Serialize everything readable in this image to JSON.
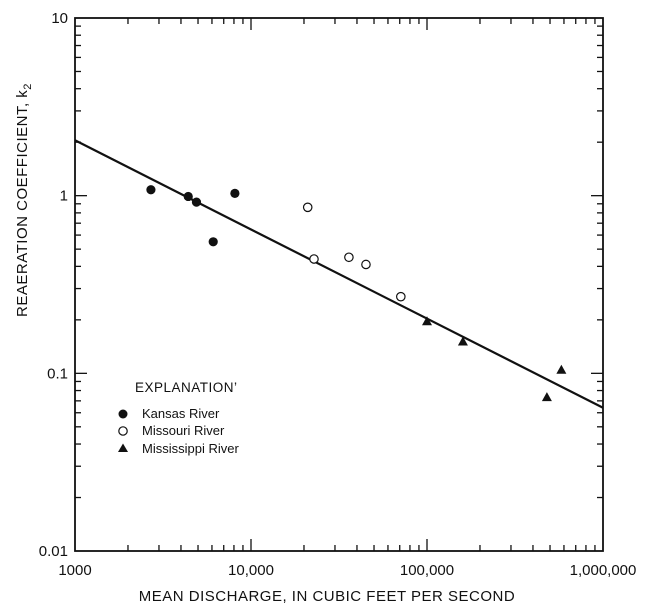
{
  "chart_data": {
    "type": "scatter",
    "title": "",
    "xlabel": "MEAN DISCHARGE, IN CUBIC FEET PER SECOND",
    "ylabel": "REAERATION COEFFICIENT, k",
    "ylabel_subscript": "2",
    "xscale": "log",
    "yscale": "log",
    "xlim": [
      1000,
      1000000
    ],
    "ylim": [
      0.01,
      10
    ],
    "grid": false,
    "x_ticks": [
      {
        "value": 1000,
        "label": "1000"
      },
      {
        "value": 10000,
        "label": "10,000"
      },
      {
        "value": 100000,
        "label": "100,000"
      },
      {
        "value": 1000000,
        "label": "1,000,000"
      }
    ],
    "y_ticks": [
      {
        "value": 0.01,
        "label": "0.01"
      },
      {
        "value": 0.1,
        "label": "0.1"
      },
      {
        "value": 1,
        "label": "1"
      },
      {
        "value": 10,
        "label": "10"
      }
    ],
    "legend": {
      "title": "EXPLANATION’",
      "placement": "lower-left",
      "entries": [
        {
          "label": "Kansas River",
          "marker": "filled-circle"
        },
        {
          "label": "Missouri River",
          "marker": "open-circle"
        },
        {
          "label": "Mississippi River",
          "marker": "filled-triangle"
        }
      ]
    },
    "series": [
      {
        "name": "Kansas River",
        "marker": "filled-circle",
        "points": [
          {
            "x": 2700,
            "y": 1.08
          },
          {
            "x": 4400,
            "y": 0.99
          },
          {
            "x": 4900,
            "y": 0.92
          },
          {
            "x": 6100,
            "y": 0.55
          },
          {
            "x": 8100,
            "y": 1.03
          }
        ]
      },
      {
        "name": "Missouri River",
        "marker": "open-circle",
        "points": [
          {
            "x": 21000,
            "y": 0.86
          },
          {
            "x": 22800,
            "y": 0.44
          },
          {
            "x": 36000,
            "y": 0.45
          },
          {
            "x": 45000,
            "y": 0.41
          },
          {
            "x": 71000,
            "y": 0.27
          }
        ]
      },
      {
        "name": "Mississippi River",
        "marker": "filled-triangle",
        "points": [
          {
            "x": 100000,
            "y": 0.195
          },
          {
            "x": 160000,
            "y": 0.15
          },
          {
            "x": 480000,
            "y": 0.073
          },
          {
            "x": 580000,
            "y": 0.104
          }
        ]
      }
    ],
    "fit_line": {
      "points": [
        {
          "x": 1000,
          "y": 2.05
        },
        {
          "x": 1000000,
          "y": 0.064
        }
      ]
    }
  }
}
